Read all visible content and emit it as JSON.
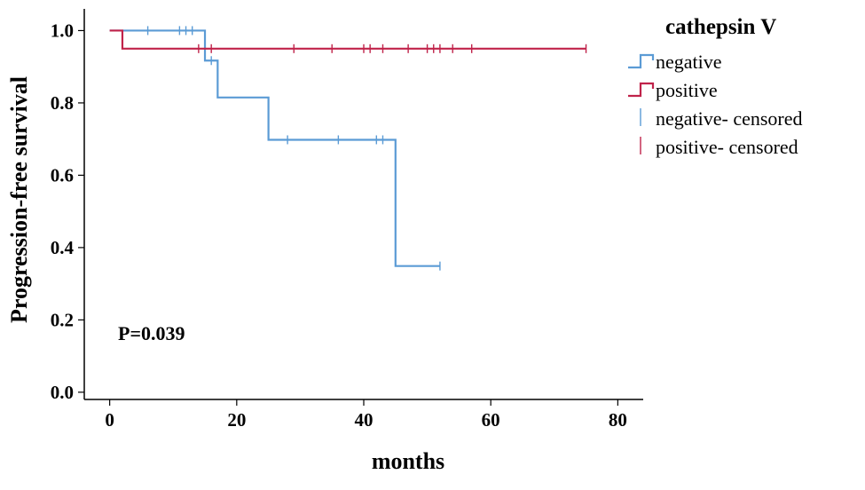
{
  "chart_data": {
    "type": "line",
    "step": true,
    "xlabel": "months",
    "ylabel": "Progression-free survival",
    "xlim": [
      -4,
      84
    ],
    "ylim": [
      -0.02,
      1.06
    ],
    "xticks": [
      0,
      20,
      40,
      60,
      80
    ],
    "yticks": [
      0.0,
      0.2,
      0.4,
      0.6,
      0.8,
      1.0
    ],
    "xtick_labels": [
      "0",
      "20",
      "40",
      "60",
      "80"
    ],
    "ytick_labels": [
      "0.0",
      "0.2",
      "0.4",
      "0.6",
      "0.8",
      "1.0"
    ],
    "grid": false,
    "legend_title": "cathepsin V",
    "legend_position": "top-right outside",
    "annotation": "P=0.039",
    "series": [
      {
        "name": "negative",
        "color": "#5b9bd5",
        "steps": [
          [
            0,
            1.0
          ],
          [
            15,
            0.917
          ],
          [
            17,
            0.815
          ],
          [
            25,
            0.698
          ],
          [
            45,
            0.349
          ],
          [
            52,
            0.349
          ]
        ],
        "censored": [
          [
            6,
            1.0
          ],
          [
            11,
            1.0
          ],
          [
            12,
            1.0
          ],
          [
            13,
            1.0
          ],
          [
            16,
            0.917
          ],
          [
            28,
            0.698
          ],
          [
            36,
            0.698
          ],
          [
            42,
            0.698
          ],
          [
            43,
            0.698
          ],
          [
            52,
            0.349
          ]
        ]
      },
      {
        "name": "positive",
        "color": "#c0234a",
        "steps": [
          [
            0,
            1.0
          ],
          [
            2,
            0.95
          ],
          [
            75,
            0.95
          ]
        ],
        "censored": [
          [
            14,
            0.95
          ],
          [
            16,
            0.95
          ],
          [
            29,
            0.95
          ],
          [
            35,
            0.95
          ],
          [
            40,
            0.95
          ],
          [
            41,
            0.95
          ],
          [
            43,
            0.95
          ],
          [
            47,
            0.95
          ],
          [
            50,
            0.95
          ],
          [
            51,
            0.95
          ],
          [
            52,
            0.95
          ],
          [
            54,
            0.95
          ],
          [
            57,
            0.95
          ],
          [
            75,
            0.95
          ]
        ]
      }
    ],
    "legend_entries": [
      {
        "label": "negative",
        "kind": "line",
        "color": "#5b9bd5"
      },
      {
        "label": "positive",
        "kind": "line",
        "color": "#c0234a"
      },
      {
        "label": "negative- censored",
        "kind": "censor",
        "color": "#5b9bd5"
      },
      {
        "label": "positive- censored",
        "kind": "censor",
        "color": "#c0234a"
      }
    ]
  }
}
